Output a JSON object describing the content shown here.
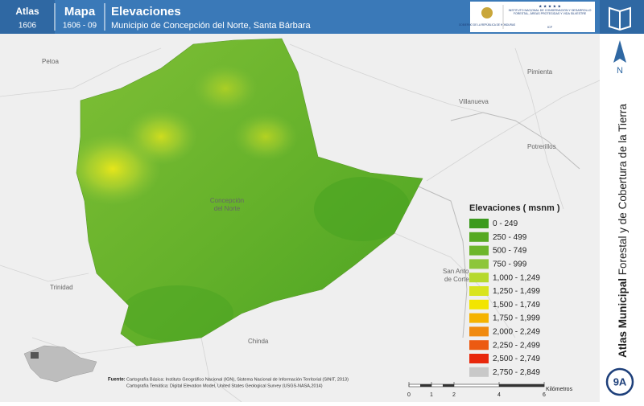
{
  "header": {
    "atlas_label": "Atlas",
    "atlas_code": "1606",
    "mapa_label": "Mapa",
    "mapa_code": "1606 - 09",
    "title": "Elevaciones",
    "subtitle": "Municipio de Concepción del Norte, Santa Bárbara"
  },
  "logos": {
    "gov": "GOBIERNO DE LA REPÚBLICA DE HONDURAS",
    "icf": "INSTITUTO NACIONAL DE CONSERVACIÓN Y DESARROLLO FORESTAL, ÁREAS PROTEGIDAS Y VIDA SILVESTRE",
    "icf_short": "ICF"
  },
  "sidebar": {
    "title_bold": "Atlas Municipal",
    "title_rest": "Forestal y de Cobertura de la Tierra",
    "north": "N",
    "sheet": "9A"
  },
  "places": [
    "Petoa",
    "Pimienta",
    "Villanueva",
    "Potrerillos",
    "Concepción",
    "del Norte",
    "San Anto",
    "de Corte",
    "Trinidad",
    "Chinda"
  ],
  "legend": {
    "title": "Elevaciones ( msnm )",
    "items": [
      {
        "label": "0 - 249",
        "color": "#3c9a1e"
      },
      {
        "label": "250 - 499",
        "color": "#56a922"
      },
      {
        "label": "500 - 749",
        "color": "#6db62b"
      },
      {
        "label": "750 - 999",
        "color": "#8dc63a"
      },
      {
        "label": "1,000 - 1,249",
        "color": "#b6d92d"
      },
      {
        "label": "1,250 - 1,499",
        "color": "#d9e41f"
      },
      {
        "label": "1,500 - 1,749",
        "color": "#f2e500"
      },
      {
        "label": "1,750 - 1,999",
        "color": "#f5b300"
      },
      {
        "label": "2,000 - 2,249",
        "color": "#f08a10"
      },
      {
        "label": "2,250 - 2,499",
        "color": "#ec5a12"
      },
      {
        "label": "2,500 - 2,749",
        "color": "#e8280c"
      },
      {
        "label": "2,750 - 2,849",
        "color": "#c8c8c8"
      }
    ]
  },
  "scale": {
    "ticks": [
      "0",
      "1",
      "2",
      "4",
      "6"
    ],
    "unit": "Kilómetros"
  },
  "source": {
    "label": "Fuente:",
    "lines": [
      "Cartografía Básica: Instituto Geográfico Nacional (IGN), Sistema Nacional de Información Territorial (SINIT, 2013)",
      "Cartografía Temática: Digital Elevation Model, United States Geological Survey (USGS-NASA,2014)"
    ]
  }
}
